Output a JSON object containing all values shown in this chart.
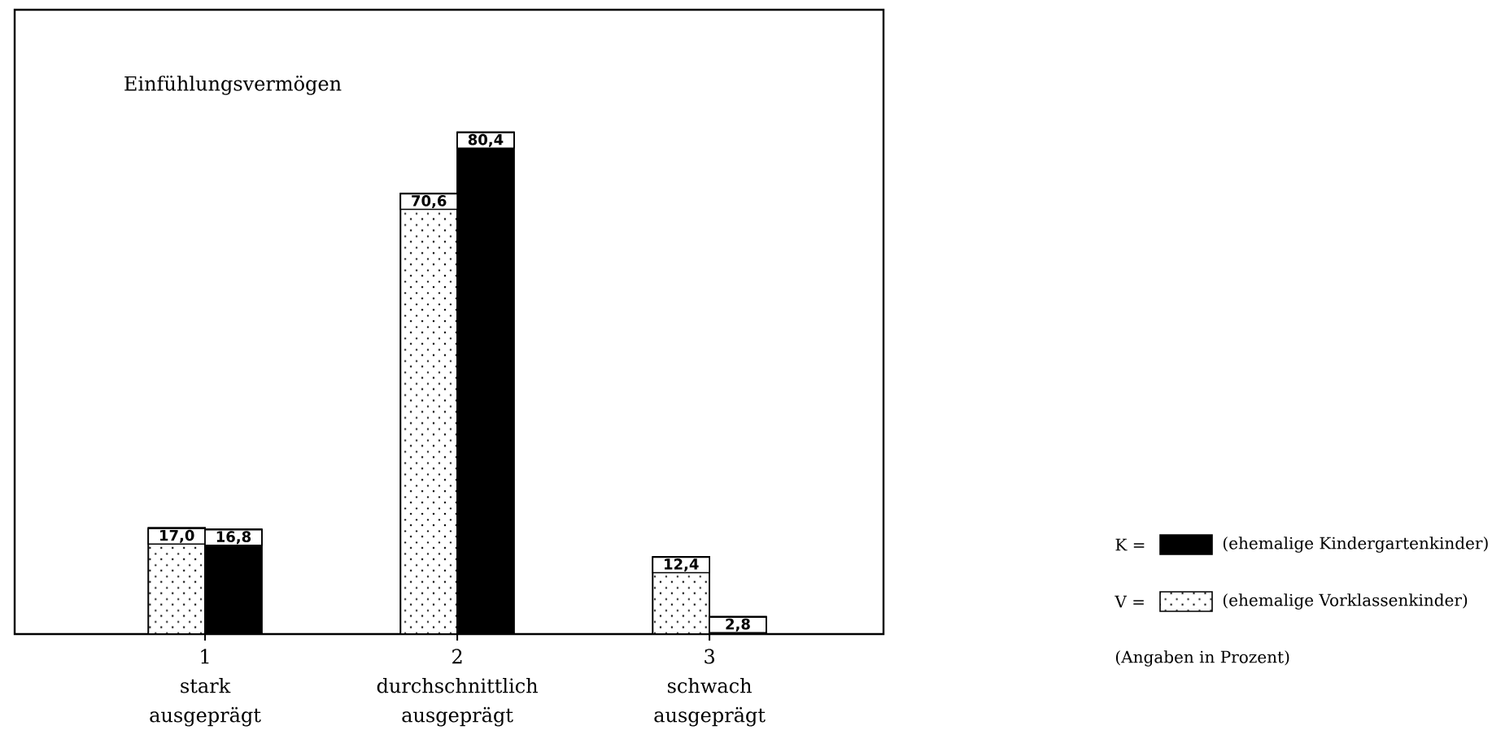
{
  "chart_data": {
    "type": "bar",
    "title": "Einfühlungsvermögen",
    "categories": [
      "1 stark ausgeprägt",
      "2 durchschnittlich ausgeprägt",
      "3 schwach ausgeprägt"
    ],
    "series": [
      {
        "name": "(ehemalige Vorklassenkinder)",
        "color": "#ffffff",
        "values": [
          17.0,
          70.6,
          12.4
        ],
        "value_labels": [
          "17,0",
          "70,6",
          "12,4"
        ]
      },
      {
        "name": "(ehemalige Kindergartenkinder)",
        "color": "#000000",
        "values": [
          16.8,
          80.4,
          2.8
        ],
        "value_labels": [
          "16,8",
          "80,4",
          "2,8"
        ]
      }
    ],
    "ylim": [
      0,
      100
    ],
    "tick_labels": "x",
    "legend": "bottom right",
    "annotations": [
      "K =",
      "V =",
      "(Angaben in Prozent)"
    ]
  }
}
